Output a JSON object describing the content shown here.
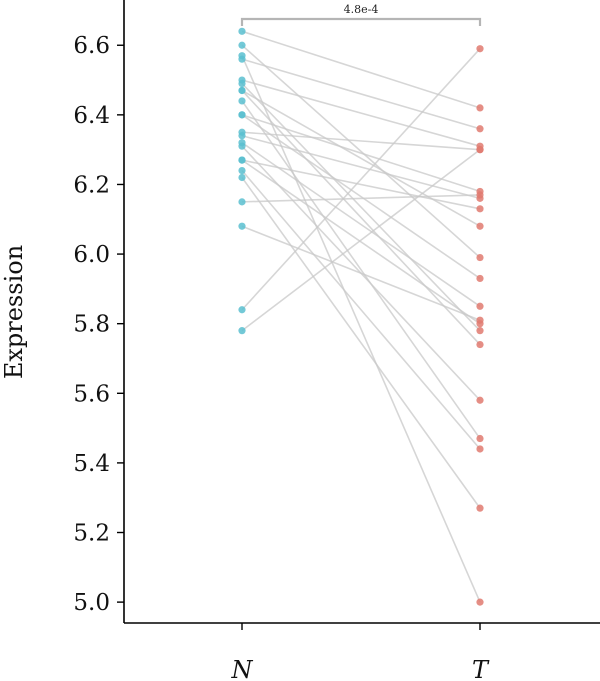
{
  "chart_data": {
    "type": "paired-dot",
    "ylabel": "Expression",
    "categories": [
      "N",
      "T"
    ],
    "ylim": [
      4.94,
      6.73
    ],
    "yticks": [
      5.0,
      5.2,
      5.4,
      5.6,
      5.8,
      6.0,
      6.2,
      6.4,
      6.6
    ],
    "ytick_labels": [
      "5.0",
      "5.2",
      "5.4",
      "5.6",
      "5.8",
      "6.0",
      "6.2",
      "6.4",
      "6.6"
    ],
    "significance": {
      "label": "4.8e-4",
      "between": [
        "N",
        "T"
      ]
    },
    "colors": {
      "N": "#5bbfd0",
      "T": "#e07a70",
      "line": "#c9c9c9"
    },
    "pairs": [
      {
        "N": 6.64,
        "T": 6.42
      },
      {
        "N": 6.6,
        "T": 5.99
      },
      {
        "N": 6.57,
        "T": 5.0
      },
      {
        "N": 6.56,
        "T": 6.36
      },
      {
        "N": 6.5,
        "T": 6.31
      },
      {
        "N": 6.49,
        "T": 5.78
      },
      {
        "N": 6.47,
        "T": 6.08
      },
      {
        "N": 6.47,
        "T": 5.74
      },
      {
        "N": 6.44,
        "T": 5.47
      },
      {
        "N": 6.4,
        "T": 6.18
      },
      {
        "N": 6.4,
        "T": 5.93
      },
      {
        "N": 6.35,
        "T": 6.3
      },
      {
        "N": 6.34,
        "T": 6.16
      },
      {
        "N": 6.32,
        "T": 5.85
      },
      {
        "N": 6.31,
        "T": 5.58
      },
      {
        "N": 6.27,
        "T": 6.13
      },
      {
        "N": 6.27,
        "T": 5.8
      },
      {
        "N": 6.24,
        "T": 5.44
      },
      {
        "N": 6.22,
        "T": 5.27
      },
      {
        "N": 6.15,
        "T": 6.17
      },
      {
        "N": 6.08,
        "T": 5.81
      },
      {
        "N": 5.84,
        "T": 6.59
      },
      {
        "N": 5.78,
        "T": 6.3
      }
    ]
  }
}
